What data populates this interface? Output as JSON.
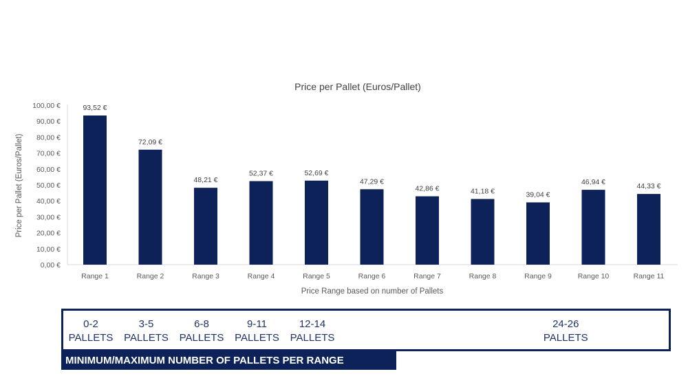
{
  "chart_data": {
    "type": "bar",
    "title": "Price per Pallet (Euros/Pallet)",
    "xlabel": "Price Range based on number of Pallets",
    "ylabel": "Price per Pallet (Euros/Pallet)",
    "ylim": [
      0,
      100
    ],
    "yticks": [
      "0,00 €",
      "10,00 €",
      "20,00 €",
      "30,00 €",
      "40,00 €",
      "50,00 €",
      "60,00 €",
      "70,00 €",
      "80,00 €",
      "90,00 €",
      "100,00 €"
    ],
    "categories": [
      "Range 1",
      "Range 2",
      "Range 3",
      "Range 4",
      "Range 5",
      "Range 6",
      "Range 7",
      "Range 8",
      "Range 9",
      "Range 10",
      "Range 11"
    ],
    "values": [
      93.52,
      72.09,
      48.21,
      52.37,
      52.69,
      47.29,
      42.86,
      41.18,
      39.04,
      46.94,
      44.33
    ],
    "data_labels": [
      "93,52 €",
      "72,09 €",
      "48,21 €",
      "52,37 €",
      "52,69 €",
      "47,29 €",
      "42,86 €",
      "41,18 €",
      "39,04 €",
      "46,94 €",
      "44,33 €"
    ],
    "bar_color": "#0d2259",
    "grid": false,
    "legend": "none"
  },
  "ranges_box": {
    "items": [
      {
        "range": "0-2",
        "unit": "PALLETS",
        "category": 0
      },
      {
        "range": "3-5",
        "unit": "PALLETS",
        "category": 1
      },
      {
        "range": "6-8",
        "unit": "PALLETS",
        "category": 2
      },
      {
        "range": "9-11",
        "unit": "PALLETS",
        "category": 3
      },
      {
        "range": "12-14",
        "unit": "PALLETS",
        "category": 4
      },
      {
        "range": "24-26",
        "unit": "PALLETS",
        "category": 8.5
      }
    ],
    "caption": "MINIMUM/MAXIMUM NUMBER OF PALLETS PER RANGE"
  }
}
